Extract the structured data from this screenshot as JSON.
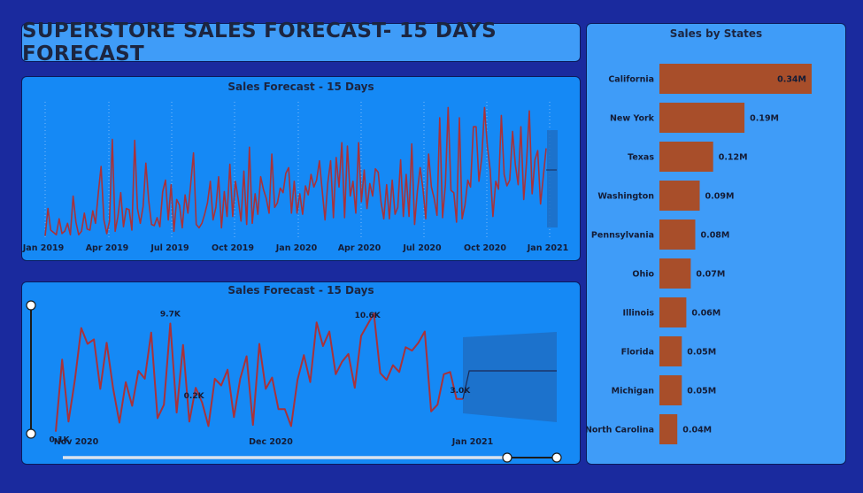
{
  "dashboard": {
    "title": "SUPERSTORE SALES FORECAST- 15 DAYS FORECAST"
  },
  "colors": {
    "background": "#1a2a9e",
    "panel_light": "#3f9cf8",
    "panel_blue": "#1589f5",
    "line": "#a8323a",
    "bar": "#a84e2a",
    "forecast_band": "#1d6fc4"
  },
  "chart_data": [
    {
      "type": "line",
      "title": "Sales Forecast - 15 Days",
      "x_tick_labels": [
        "Jan 2019",
        "Apr 2019",
        "Jul 2019",
        "Oct 2019",
        "Jan 2020",
        "Apr 2020",
        "Jul 2020",
        "Oct 2020",
        "Jan 2021"
      ],
      "x_range": [
        "2019-01-01",
        "2021-01-15"
      ],
      "y_range": [
        0,
        12000
      ],
      "grid": "vertical dotted lines at quarter ticks",
      "series": [
        {
          "values": [
            200,
            2600,
            700,
            500,
            300,
            1700,
            400,
            600,
            1300,
            300,
            3700,
            1400,
            300,
            600,
            2200,
            800,
            700,
            2400,
            1300,
            4000,
            6300,
            1600,
            400,
            1500,
            8700,
            600,
            1900,
            4000,
            1000,
            2600,
            2500,
            700,
            8600,
            2600,
            1300,
            2800,
            6600,
            3300,
            1200,
            1100,
            1800,
            1000,
            4100,
            5100,
            1600,
            4700,
            600,
            3400,
            2900,
            900,
            3800,
            2200,
            4700,
            7500,
            1200,
            900,
            1300,
            2100,
            3100,
            5000,
            1600,
            2700,
            5400,
            900,
            4100,
            1900,
            6500,
            1900,
            5000,
            3400,
            1500,
            5900,
            1200,
            8000,
            1300,
            3900,
            2100,
            5400,
            4300,
            3500,
            2200,
            7400,
            2700,
            3100,
            4400,
            4000,
            5700,
            6200,
            2200,
            5000,
            2200,
            3900,
            2100,
            4600,
            3800,
            5600,
            4500,
            5100,
            6800,
            4200,
            1600,
            4900,
            6800,
            1800,
            7100,
            4500,
            8400,
            1800,
            8100,
            3700,
            5000,
            2200,
            8400,
            3200,
            6000,
            2600,
            4800,
            3700,
            6100,
            5800,
            3200,
            1700,
            4700,
            1700,
            5100,
            2100,
            2700,
            6900,
            1900,
            5600,
            1900,
            8300,
            1200,
            4100,
            6200,
            4300,
            1700,
            7400,
            4500,
            3500,
            2000,
            10600,
            1800,
            4700,
            11500,
            4200,
            4000,
            1400,
            10600,
            1700,
            2900,
            5100,
            4500,
            9800,
            9800,
            5000,
            7100,
            11500,
            8100,
            6000,
            1900,
            5000,
            4300,
            10800,
            5600,
            4600,
            5100,
            9400,
            6500,
            4700,
            9800,
            3400,
            6700,
            11200,
            3900,
            6900,
            7700,
            3000,
            5400,
            7900
          ]
        },
        {
          "name": "",
          "values": [
            6000,
            6000
          ],
          "kind": "forecast"
        }
      ]
    },
    {
      "type": "line",
      "title": "Sales Forecast - 15 Days",
      "x_tick_labels": [
        "Nov 2020",
        "Dec 2020",
        "Jan 2021"
      ],
      "x_range": [
        "2020-11-01",
        "2021-01-16"
      ],
      "y_range": [
        0,
        11000
      ],
      "data_labels": [
        "9.7K",
        "10.6K",
        "0.1K",
        "0.2K",
        "3.0K"
      ],
      "series": [
        {
          "values": [
            100,
            6500,
            1000,
            4700,
            9300,
            7900,
            8300,
            3900,
            8000,
            4000,
            900,
            4500,
            2400,
            5500,
            4800,
            8900,
            1300,
            2500,
            9700,
            1800,
            7800,
            1000,
            4000,
            2700,
            600,
            4800,
            4200,
            5600,
            1400,
            4800,
            6800,
            700,
            7900,
            3900,
            4900,
            2100,
            2100,
            600,
            4700,
            6900,
            4500,
            9800,
            7700,
            9000,
            5200,
            6300,
            7000,
            4000,
            8600,
            9600,
            10600,
            5300,
            4700,
            6000,
            5400,
            7600,
            7300,
            8000,
            9000,
            1900,
            2500,
            5200,
            5400,
            3000,
            3000
          ]
        },
        {
          "name": "",
          "values": [
            3000,
            5500,
            5500,
            5500,
            5500,
            5500,
            5500,
            5500,
            5500,
            5500,
            5500,
            5500,
            5500,
            5500,
            5500,
            5500
          ],
          "kind": "forecast"
        }
      ]
    },
    {
      "type": "bar",
      "title": "Sales by States",
      "orientation": "horizontal",
      "categories": [
        "California",
        "New York",
        "Texas",
        "Washington",
        "Pennsylvania",
        "Ohio",
        "Illinois",
        "Florida",
        "Michigan",
        "North Carolina"
      ],
      "values": [
        0.34,
        0.19,
        0.12,
        0.09,
        0.08,
        0.07,
        0.06,
        0.05,
        0.05,
        0.04
      ],
      "labels": [
        "0.34M",
        "0.19M",
        "0.12M",
        "0.09M",
        "0.08M",
        "0.07M",
        "0.06M",
        "0.05M",
        "0.05M",
        "0.04M"
      ]
    }
  ]
}
